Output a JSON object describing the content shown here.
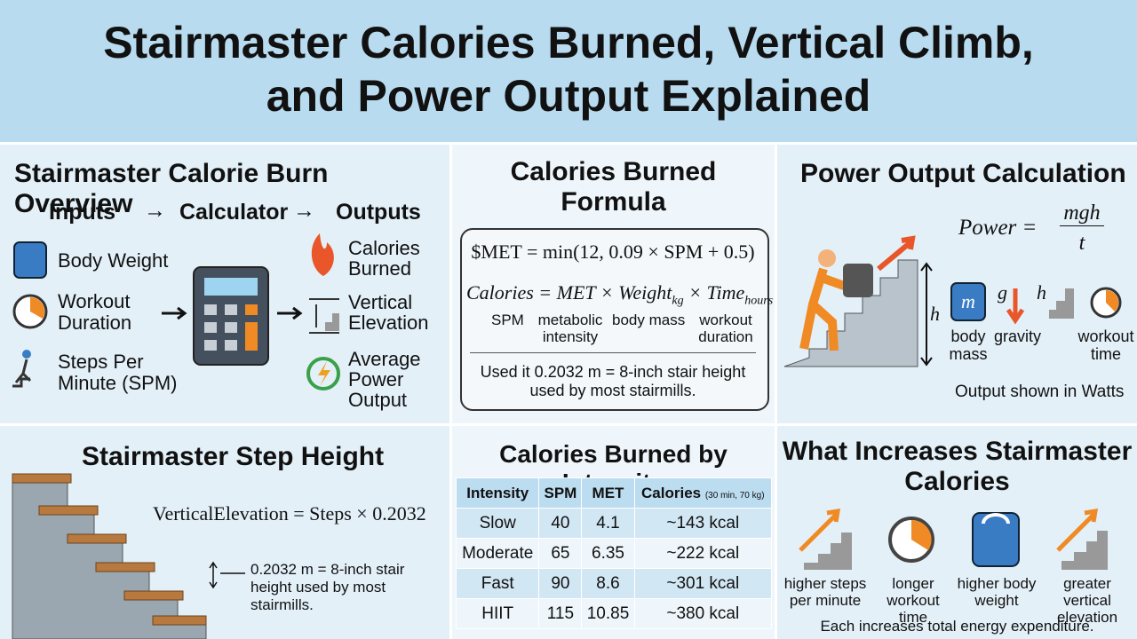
{
  "header": {
    "title_lines": [
      "Stairmaster Calories Burned, Vertical Climb,",
      "and Power Output Explained"
    ]
  },
  "overview": {
    "title": "Stairmaster Calorie Burn Overview",
    "flow": [
      "Inputs",
      "Calculator",
      "Outputs"
    ],
    "inputs": [
      "Body Weight",
      "Workout Duration",
      "Steps Per Minute (SPM)"
    ],
    "outputs": [
      "Calories Burned",
      "Vertical Elevation",
      "Average Power Output"
    ]
  },
  "formula": {
    "title": "Calories Burned Formula",
    "met": "$MET = min(12, 0.09 × SPM + 0.5)",
    "calories": {
      "main": "Calories = MET × Weight",
      "sub1": "kg",
      "mid": " × Time",
      "sub2": "hours"
    },
    "labels": [
      "SPM",
      "metabolic intensity",
      "body mass",
      "workout duration"
    ],
    "note": "Used it 0.2032 m = 8-inch stair height used by most stairmills."
  },
  "power": {
    "title": "Power Output Calculation",
    "lhs": "Power =",
    "numerator": "mgh",
    "denominator": "t",
    "h": "h",
    "symbols": [
      "m",
      "g",
      "h"
    ],
    "labels": [
      "body mass",
      "gravity",
      "workout time"
    ],
    "note": "Output shown in Watts"
  },
  "step": {
    "title": "Stairmaster Step Height",
    "formula": "VerticalElevation = Steps × 0.2032",
    "note": "0.2032 m = 8-inch stair height used by most stairmills."
  },
  "table": {
    "title": "Calories Burned by Intensity",
    "headers": [
      "Intensity",
      "SPM",
      "MET",
      "Calories"
    ],
    "header_note": "(30 min, 70 kg)",
    "rows": [
      [
        "Slow",
        "40",
        "4.1",
        "~143 kcal"
      ],
      [
        "Moderate",
        "65",
        "6.35",
        "~222 kcal"
      ],
      [
        "Fast",
        "90",
        "8.6",
        "~301 kcal"
      ],
      [
        "HIIT",
        "115",
        "10.85",
        "~380 kcal"
      ]
    ]
  },
  "increase": {
    "title": "What Increases Stairmaster Calories",
    "items": [
      "higher steps per minute",
      "longer workout time",
      "higher body weight",
      "greater vertical elevation"
    ],
    "footer": "Each increases total energy expenditure."
  }
}
